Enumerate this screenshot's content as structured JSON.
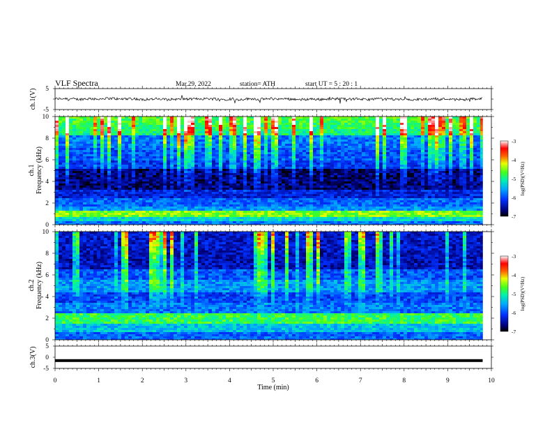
{
  "header": {
    "title": "VLF  Spectra",
    "date": "Mar.29, 2022",
    "station": "station= ATH",
    "start_ut": "start  UT  =    5  : 20 : 1"
  },
  "chart_data": [
    {
      "type": "line",
      "panel": "ch1-waveform",
      "ylabel": "ch.1(V)",
      "ylim": [
        -5,
        5
      ],
      "y_ticks": [
        "5",
        "-5"
      ],
      "xlim": [
        0,
        10
      ],
      "data_extent_min": 9.8,
      "baseline_value": 0,
      "noise_amplitude": 1,
      "line_color": "#000000"
    },
    {
      "type": "heatmap",
      "panel": "ch1-spectrogram",
      "ylabel_top": "ch.1",
      "ylabel": "Frequency  (kHz)",
      "xlim": [
        0,
        10
      ],
      "ylim": [
        0,
        10
      ],
      "y_ticks": [
        "0",
        "2",
        "4",
        "6",
        "8",
        "10"
      ],
      "data_extent_min": 9.8,
      "colorbar": {
        "label": "log(PSD)(V²/Hz)",
        "range": [
          -7,
          -3
        ],
        "ticks": [
          "-3",
          "-4",
          "-5",
          "-6",
          "-7"
        ]
      }
    },
    {
      "type": "heatmap",
      "panel": "ch2-spectrogram",
      "ylabel_top": "ch.2",
      "ylabel": "Frequency  (kHz)",
      "xlim": [
        0,
        10
      ],
      "ylim": [
        0,
        10
      ],
      "y_ticks": [
        "0",
        "2",
        "4",
        "6",
        "8",
        "10"
      ],
      "data_extent_min": 9.8,
      "colorbar": {
        "label": "log(PSD)(V²/Hz)",
        "range": [
          -7,
          -3
        ],
        "ticks": [
          "-3",
          "-4",
          "-5",
          "-6",
          "-7"
        ]
      }
    },
    {
      "type": "line",
      "panel": "ch3-waveform",
      "ylabel": "ch.3(V)",
      "ylim": [
        -5,
        5
      ],
      "y_ticks": [
        "5",
        "0",
        "-5"
      ],
      "xlim": [
        0,
        10
      ],
      "data_extent_min": 9.8,
      "baseline_value": -1.5,
      "line_color": "#000000"
    }
  ],
  "x_axis": {
    "label": "Time  (min)",
    "ticks": [
      "0",
      "1",
      "2",
      "3",
      "4",
      "5",
      "6",
      "7",
      "8",
      "9",
      "10"
    ]
  }
}
